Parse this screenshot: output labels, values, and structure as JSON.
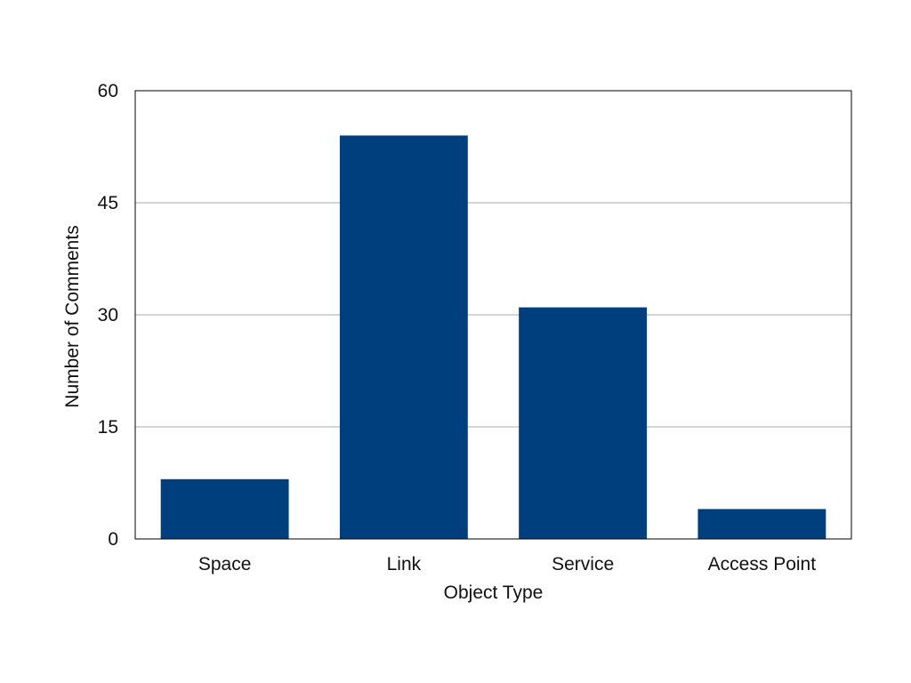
{
  "chart_data": {
    "type": "bar",
    "categories": [
      "Space",
      "Link",
      "Service",
      "Access Point"
    ],
    "values": [
      8,
      54,
      31,
      4
    ],
    "title": "",
    "xlabel": "Object Type",
    "ylabel": "Number of Comments",
    "ylim": [
      0,
      60
    ],
    "yticks": [
      0,
      15,
      30,
      45,
      60
    ],
    "grid": true,
    "legend": "none",
    "bar_color": "#003F7D",
    "grid_color": "#AAAAAA",
    "axis_color": "#000000"
  }
}
